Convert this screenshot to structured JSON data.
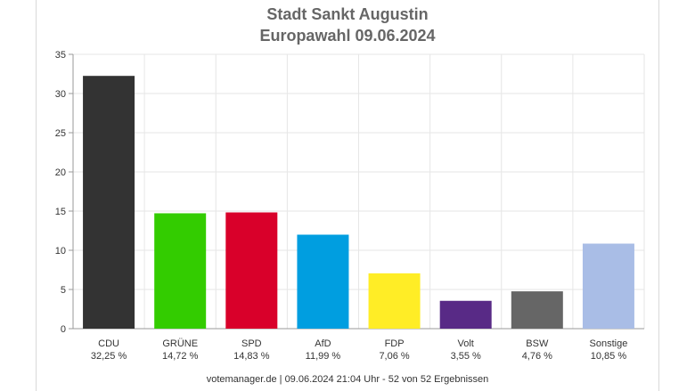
{
  "chart_data": {
    "type": "bar",
    "title": "Stadt Sankt Augustin",
    "subtitle": "Europawahl 09.06.2024",
    "categories": [
      "CDU",
      "GRÜNE",
      "SPD",
      "AfD",
      "FDP",
      "Volt",
      "BSW",
      "Sonstige"
    ],
    "value_labels": [
      "32,25 %",
      "14,72 %",
      "14,83 %",
      "11,99 %",
      "7,06 %",
      "3,55 %",
      "4,76 %",
      "10,85 %"
    ],
    "values": [
      32.25,
      14.72,
      14.83,
      11.99,
      7.06,
      3.55,
      4.76,
      10.85
    ],
    "colors": [
      "#333333",
      "#33cc00",
      "#d9002a",
      "#009ee0",
      "#ffed26",
      "#582a86",
      "#666666",
      "#a9bde6"
    ],
    "ylim": [
      0,
      35
    ],
    "yticks": [
      0,
      5,
      10,
      15,
      20,
      25,
      30,
      35
    ],
    "grid": true,
    "xlabel": "",
    "ylabel": ""
  },
  "footer": "votemanager.de | 09.06.2024 21:04 Uhr - 52 von 52 Ergebnissen"
}
